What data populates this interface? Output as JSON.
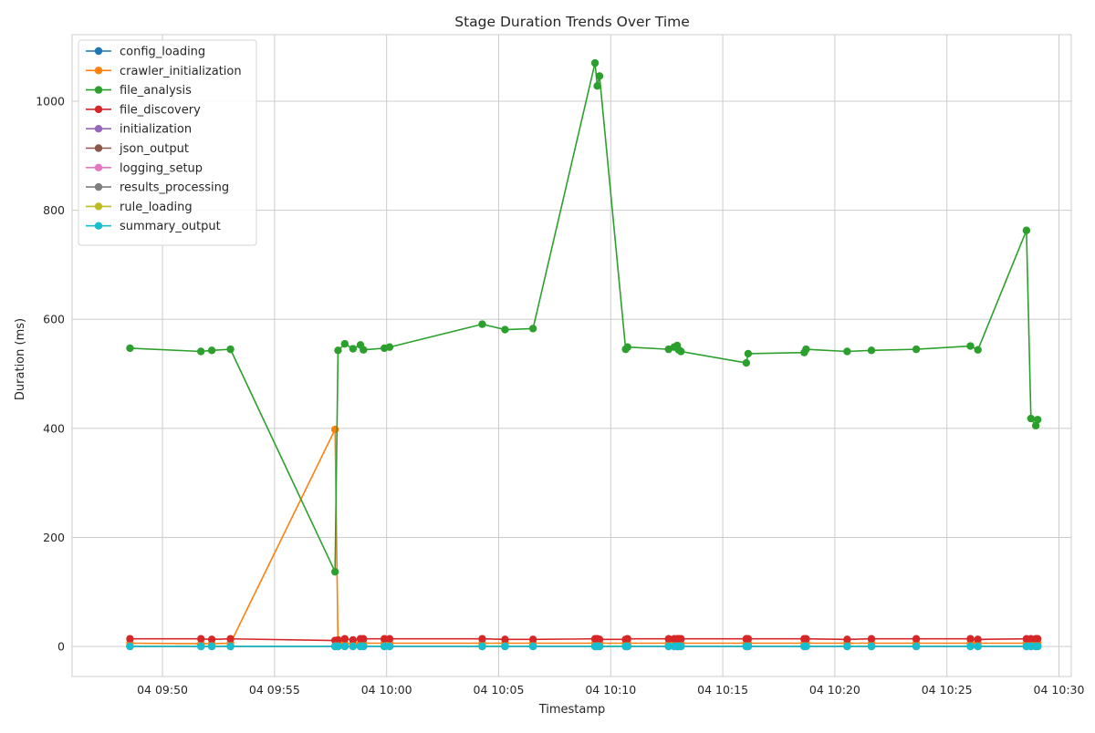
{
  "chart_data": {
    "type": "line",
    "title": "Stage Duration Trends Over Time",
    "xlabel": "Timestamp",
    "ylabel": "Duration (ms)",
    "x_range": [
      "09:45:58",
      "10:30:33"
    ],
    "ylim": [
      -55,
      1122
    ],
    "yticks": [
      0,
      200,
      400,
      600,
      800,
      1000
    ],
    "xticks": [
      {
        "time": "09:50",
        "label": "04 09:50"
      },
      {
        "time": "09:55",
        "label": "04 09:55"
      },
      {
        "time": "10:00",
        "label": "04 10:00"
      },
      {
        "time": "10:05",
        "label": "04 10:05"
      },
      {
        "time": "10:10",
        "label": "04 10:10"
      },
      {
        "time": "10:15",
        "label": "04 10:15"
      },
      {
        "time": "10:20",
        "label": "04 10:20"
      },
      {
        "time": "10:25",
        "label": "04 10:25"
      },
      {
        "time": "10:30",
        "label": "04 10:30"
      }
    ],
    "grid": true,
    "legend_position": "top-left",
    "x": [
      "09:48:33",
      "09:51:43",
      "09:52:12",
      "09:53:02",
      "09:57:42",
      "09:57:50",
      "09:58:08",
      "09:58:30",
      "09:58:50",
      "09:58:58",
      "09:59:54",
      "10:00:08",
      "10:04:16",
      "10:05:17",
      "10:06:32",
      "10:09:18",
      "10:09:24",
      "10:09:30",
      "10:10:40",
      "10:10:45",
      "10:12:35",
      "10:12:50",
      "10:12:58",
      "10:13:02",
      "10:13:08",
      "10:16:03",
      "10:16:08",
      "10:18:38",
      "10:18:43",
      "10:20:33",
      "10:21:38",
      "10:23:38",
      "10:26:03",
      "10:26:23",
      "10:28:33",
      "10:28:45",
      "10:28:58",
      "10:29:03"
    ],
    "series": [
      {
        "name": "config_loading",
        "color": "#1f77b4",
        "values": [
          0.3,
          0.3,
          0.3,
          0.3,
          0.3,
          0.3,
          0.3,
          0.3,
          0.3,
          0.3,
          0.3,
          0.3,
          0.3,
          0.3,
          0.3,
          0.3,
          0.3,
          0.3,
          0.3,
          0.3,
          0.3,
          0.3,
          0.3,
          0.3,
          0.3,
          0.3,
          0.3,
          0.3,
          0.3,
          0.3,
          0.3,
          0.3,
          0.3,
          0.3,
          0.3,
          0.3,
          0.3,
          0.3
        ]
      },
      {
        "name": "crawler_initialization",
        "color": "#ff7f0e",
        "values": [
          6,
          5,
          5,
          6,
          398,
          5,
          6,
          5,
          6,
          6,
          6,
          6,
          6,
          6,
          6,
          6,
          6,
          6,
          6,
          6,
          6,
          6,
          6,
          6,
          6,
          6,
          6,
          6,
          6,
          6,
          6,
          6,
          6,
          6,
          6,
          6,
          6,
          6
        ]
      },
      {
        "name": "file_analysis",
        "color": "#2ca02c",
        "values": [
          547,
          541,
          543,
          545,
          137,
          543,
          555,
          546,
          553,
          544,
          547,
          549,
          591,
          581,
          583,
          1070,
          1028,
          1046,
          545,
          549,
          545,
          549,
          552,
          544,
          541,
          520,
          537,
          539,
          545,
          541,
          543,
          545,
          551,
          544,
          763,
          418,
          405,
          416
        ]
      },
      {
        "name": "file_discovery",
        "color": "#d62728",
        "values": [
          14,
          14,
          13,
          14,
          11,
          12,
          14,
          12,
          14,
          14,
          14,
          14,
          14,
          13,
          13,
          14,
          14,
          13,
          13,
          14,
          14,
          14,
          14,
          14,
          14,
          14,
          14,
          14,
          14,
          13,
          14,
          14,
          14,
          13,
          14,
          14,
          14,
          14
        ]
      },
      {
        "name": "initialization",
        "color": "#9467bd",
        "values": [
          0.5,
          0.5,
          0.5,
          0.5,
          0.5,
          0.5,
          0.5,
          0.5,
          0.5,
          0.5,
          0.5,
          0.5,
          0.5,
          0.5,
          0.5,
          0.5,
          0.5,
          0.5,
          0.5,
          0.5,
          0.5,
          0.5,
          0.5,
          0.5,
          0.5,
          0.5,
          0.5,
          0.5,
          0.5,
          0.5,
          0.5,
          0.5,
          0.5,
          0.5,
          0.5,
          0.5,
          0.5,
          0.5
        ]
      },
      {
        "name": "json_output",
        "color": "#8c564b",
        "values": [
          0.4,
          0.4,
          0.4,
          0.4,
          0.4,
          0.4,
          0.4,
          0.4,
          0.4,
          0.4,
          0.4,
          0.4,
          0.4,
          0.4,
          0.4,
          0.4,
          0.4,
          0.4,
          0.4,
          0.4,
          0.4,
          0.4,
          0.4,
          0.4,
          0.4,
          0.4,
          0.4,
          0.4,
          0.4,
          0.4,
          0.4,
          0.4,
          0.4,
          0.4,
          0.4,
          0.4,
          0.4,
          0.4
        ]
      },
      {
        "name": "logging_setup",
        "color": "#e377c2",
        "values": [
          0.2,
          0.2,
          0.2,
          0.2,
          0.2,
          0.2,
          0.2,
          0.2,
          0.2,
          0.2,
          0.2,
          0.2,
          0.2,
          0.2,
          0.2,
          0.2,
          0.2,
          0.2,
          0.2,
          0.2,
          0.2,
          0.2,
          0.2,
          0.2,
          0.2,
          0.2,
          0.2,
          0.2,
          0.2,
          0.2,
          0.2,
          0.2,
          0.2,
          0.2,
          0.2,
          0.2,
          0.2,
          0.2
        ]
      },
      {
        "name": "results_processing",
        "color": "#7f7f7f",
        "values": [
          0.1,
          0.1,
          0.1,
          0.1,
          0.1,
          0.1,
          0.1,
          0.1,
          0.1,
          0.1,
          0.1,
          0.1,
          0.1,
          0.1,
          0.1,
          0.1,
          0.1,
          0.1,
          0.1,
          0.1,
          0.1,
          0.1,
          0.1,
          0.1,
          0.1,
          0.1,
          0.1,
          0.1,
          0.1,
          0.1,
          0.1,
          0.1,
          0.1,
          0.1,
          0.1,
          0.1,
          0.1,
          0.1
        ]
      },
      {
        "name": "rule_loading",
        "color": "#bcbd22",
        "values": [
          0.6,
          0.6,
          0.6,
          0.6,
          0.6,
          0.6,
          0.6,
          0.6,
          0.6,
          0.6,
          0.6,
          0.6,
          0.6,
          0.6,
          0.6,
          0.6,
          0.6,
          0.6,
          0.6,
          0.6,
          0.6,
          0.6,
          0.6,
          0.6,
          0.6,
          0.6,
          0.6,
          0.6,
          0.6,
          0.6,
          0.6,
          0.6,
          0.6,
          0.6,
          0.6,
          0.6,
          0.6,
          0.6
        ]
      },
      {
        "name": "summary_output",
        "color": "#17becf",
        "values": [
          0.2,
          0.2,
          0.2,
          0.2,
          0.2,
          0.2,
          0.2,
          0.2,
          0.2,
          0.2,
          0.2,
          0.2,
          0.2,
          0.2,
          0.2,
          0.2,
          0.2,
          0.2,
          0.2,
          0.2,
          0.2,
          0.2,
          0.2,
          0.2,
          0.2,
          0.2,
          0.2,
          0.2,
          0.2,
          0.2,
          0.2,
          0.2,
          0.2,
          0.2,
          0.2,
          0.2,
          0.2,
          0.2
        ]
      }
    ]
  }
}
